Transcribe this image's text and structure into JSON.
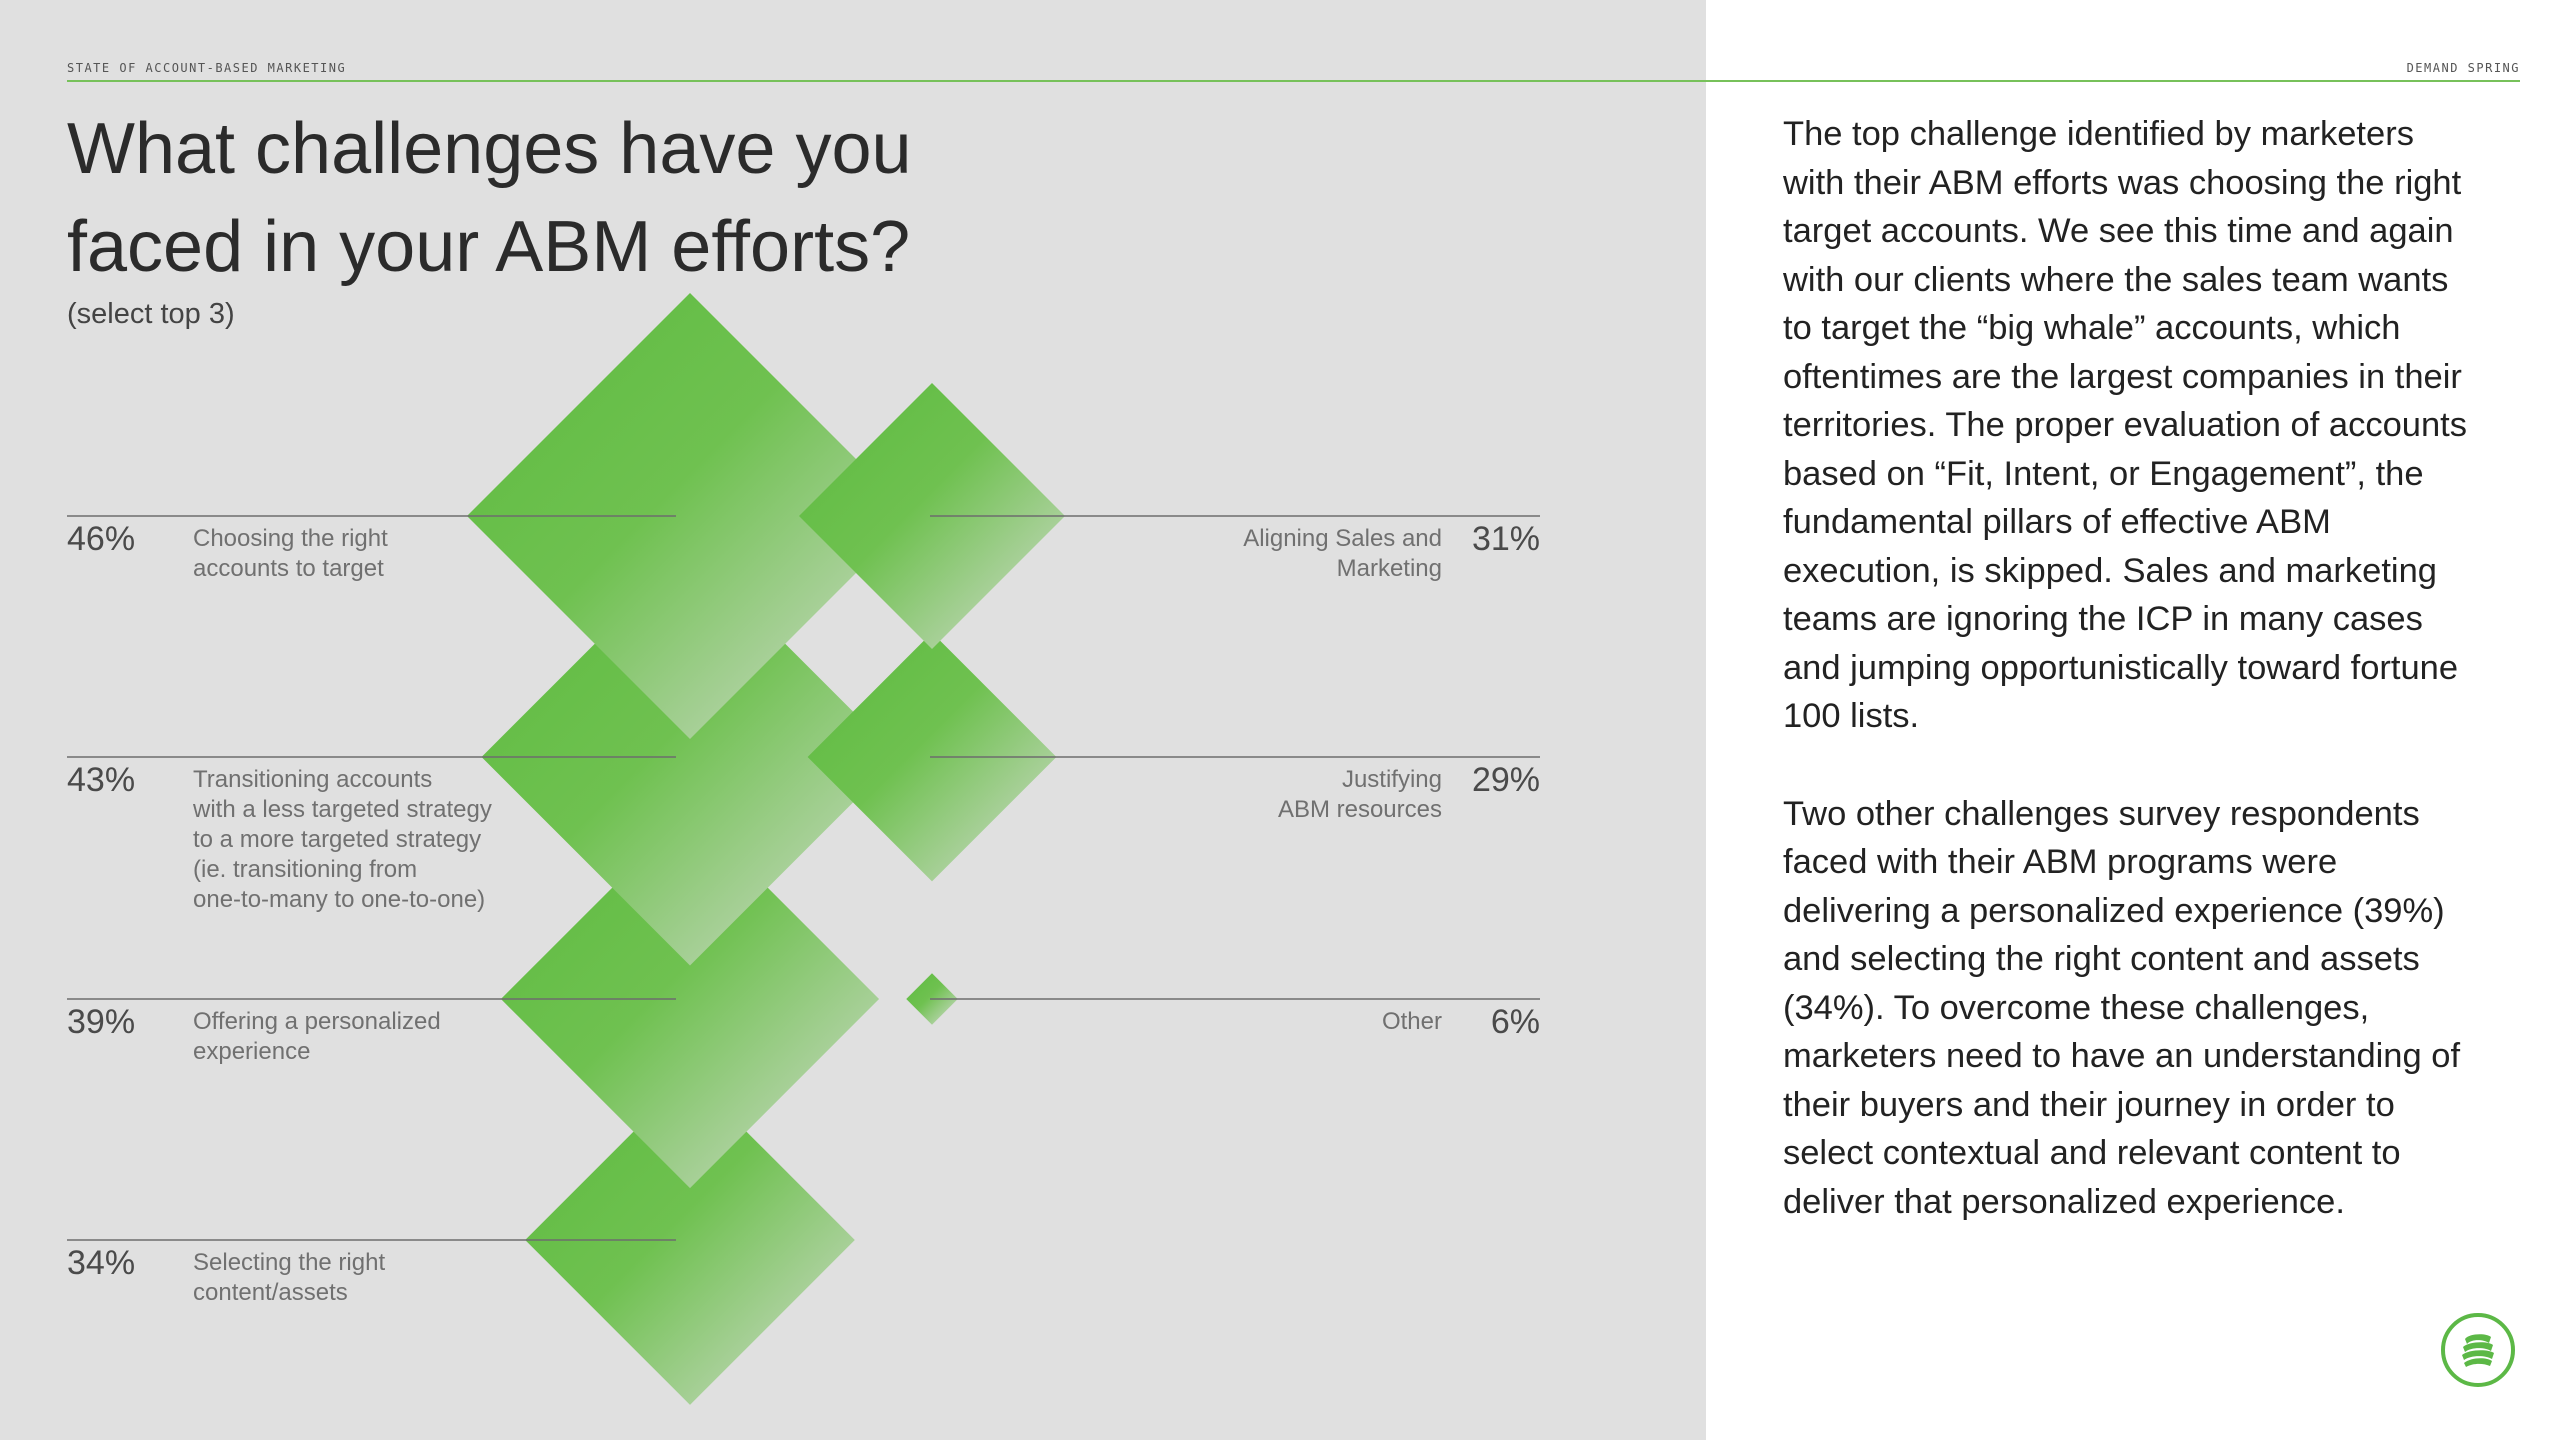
{
  "header": {
    "left": "STATE OF ACCOUNT-BASED MARKETING",
    "right": "DEMAND SPRING"
  },
  "title_line1": "What challenges have you",
  "title_line2": "faced in your ABM efforts?",
  "subtitle": "(select top 3)",
  "chart_data": {
    "type": "diamond",
    "title": "What challenges have you faced in your ABM efforts?",
    "subtitle": "(select top 3)",
    "unit": "%",
    "items": [
      {
        "label_lines": [
          "Choosing the right",
          "accounts to target"
        ],
        "value": 46,
        "display": "46%",
        "side": "left"
      },
      {
        "label_lines": [
          "Transitioning accounts",
          "with a less targeted strategy",
          "to a more targeted strategy",
          "(ie. transitioning from",
          "one-to-many to one-to-one)"
        ],
        "value": 43,
        "display": "43%",
        "side": "left"
      },
      {
        "label_lines": [
          "Offering a personalized",
          "experience"
        ],
        "value": 39,
        "display": "39%",
        "side": "left"
      },
      {
        "label_lines": [
          "Selecting the right",
          "content/assets"
        ],
        "value": 34,
        "display": "34%",
        "side": "left"
      },
      {
        "label_lines": [
          "Aligning Sales and",
          "Marketing"
        ],
        "value": 31,
        "display": "31%",
        "side": "right"
      },
      {
        "label_lines": [
          "Justifying",
          "ABM resources"
        ],
        "value": 29,
        "display": "29%",
        "side": "right"
      },
      {
        "label_lines": [
          "Other"
        ],
        "value": 6,
        "display": "6%",
        "side": "right"
      }
    ]
  },
  "body": {
    "p1": "The top challenge identified by marketers with their ABM efforts was choosing the right target accounts. We see this time and again with our clients where the sales team wants to target the “big whale” accounts, which oftentimes are the largest companies in their territories. The proper evaluation of accounts based on “Fit, Intent, or Engagement”, the fundamental pillars of effective ABM execution, is skipped. Sales and marketing teams are ignoring the ICP in many cases and jumping opportunistically toward fortune 100 lists.",
    "p2": "Two other challenges survey respondents faced with their ABM programs were delivering a personalized experience (39%) and selecting the right content and assets (34%). To overcome these challenges, marketers need to have an understanding of their buyers and their journey in order to select contextual and relevant content to deliver that personalized experience."
  },
  "colors": {
    "accent": "#67bd4a",
    "panel": "#e0e0e0",
    "diamond_light": "#d6dcd3"
  },
  "logo_icon": "demand-spring-logo-icon"
}
